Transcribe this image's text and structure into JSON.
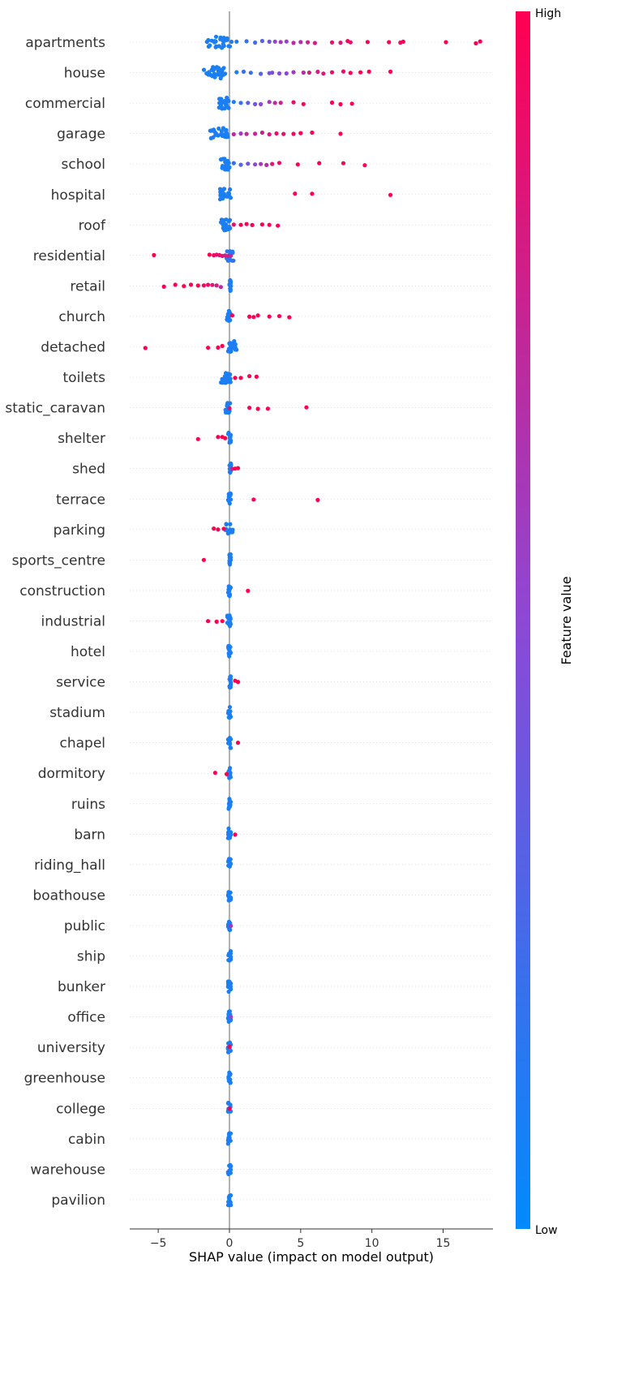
{
  "chart_data": {
    "type": "scatter",
    "subtype": "shap-beeswarm",
    "title": "",
    "xlabel": "SHAP value (impact on model output)",
    "xlim": [
      -7,
      18.5
    ],
    "xticks": [
      -5,
      0,
      5,
      10,
      15
    ],
    "xtick_labels": [
      "−5",
      "0",
      "5",
      "10",
      "15"
    ],
    "colorbar": {
      "title": "Feature value",
      "high_label": "High",
      "low_label": "Low",
      "low_color": "#008bfb",
      "high_color": "#ff0051"
    },
    "features": [
      {
        "name": "apartments",
        "cluster": [
          -1.8,
          0.2,
          30,
          0.1
        ],
        "points": [
          [
            0.5,
            0.1
          ],
          [
            1.2,
            0.2
          ],
          [
            1.8,
            0.25
          ],
          [
            2.3,
            0.3
          ],
          [
            2.8,
            0.4
          ],
          [
            3.2,
            0.5
          ],
          [
            3.6,
            0.6
          ],
          [
            4.0,
            0.55
          ],
          [
            4.5,
            0.7
          ],
          [
            5.0,
            0.65
          ],
          [
            5.5,
            0.75
          ],
          [
            6.0,
            0.8
          ],
          [
            7.2,
            0.9
          ],
          [
            7.8,
            0.85
          ],
          [
            8.3,
            0.95
          ],
          [
            8.5,
            0.9
          ],
          [
            9.7,
            1.0
          ],
          [
            11.2,
            1.0
          ],
          [
            12.0,
            0.95
          ],
          [
            12.2,
            1.0
          ],
          [
            15.2,
            1.0
          ],
          [
            17.3,
            1.0
          ],
          [
            17.6,
            1.0
          ]
        ]
      },
      {
        "name": "house",
        "cluster": [
          -1.8,
          -0.3,
          30,
          0.1
        ],
        "points": [
          [
            0.5,
            0.1
          ],
          [
            1.0,
            0.2
          ],
          [
            1.5,
            0.2
          ],
          [
            2.2,
            0.3
          ],
          [
            2.8,
            0.4
          ],
          [
            3.0,
            0.45
          ],
          [
            3.5,
            0.5
          ],
          [
            4.0,
            0.5
          ],
          [
            4.5,
            0.6
          ],
          [
            5.2,
            0.7
          ],
          [
            5.6,
            0.8
          ],
          [
            6.2,
            0.8
          ],
          [
            6.6,
            0.85
          ],
          [
            7.2,
            0.9
          ],
          [
            8.0,
            0.9
          ],
          [
            8.5,
            0.95
          ],
          [
            9.2,
            1.0
          ],
          [
            9.8,
            1.0
          ],
          [
            11.3,
            1.0
          ]
        ]
      },
      {
        "name": "commercial",
        "cluster": [
          -0.8,
          0.0,
          25,
          0.1
        ],
        "points": [
          [
            0.3,
            0.1
          ],
          [
            0.8,
            0.2
          ],
          [
            1.3,
            0.3
          ],
          [
            1.8,
            0.4
          ],
          [
            2.2,
            0.5
          ],
          [
            2.8,
            0.6
          ],
          [
            3.2,
            0.7
          ],
          [
            3.6,
            0.75
          ],
          [
            4.5,
            0.9
          ],
          [
            5.2,
            0.95
          ],
          [
            7.2,
            1.0
          ],
          [
            7.8,
            1.0
          ],
          [
            8.6,
            1.0
          ]
        ]
      },
      {
        "name": "garage",
        "cluster": [
          -1.4,
          -0.1,
          25,
          0.1
        ],
        "points": [
          [
            0.3,
            0.7
          ],
          [
            0.8,
            0.6
          ],
          [
            1.2,
            0.7
          ],
          [
            1.8,
            0.75
          ],
          [
            2.3,
            0.8
          ],
          [
            2.8,
            0.85
          ],
          [
            3.3,
            0.9
          ],
          [
            3.8,
            0.9
          ],
          [
            4.5,
            0.95
          ],
          [
            5.0,
            1.0
          ],
          [
            5.8,
            1.0
          ],
          [
            7.8,
            1.0
          ]
        ]
      },
      {
        "name": "school",
        "cluster": [
          -0.6,
          0.0,
          20,
          0.1
        ],
        "points": [
          [
            0.3,
            0.2
          ],
          [
            0.8,
            0.3
          ],
          [
            1.3,
            0.4
          ],
          [
            1.8,
            0.5
          ],
          [
            2.2,
            0.6
          ],
          [
            2.6,
            0.7
          ],
          [
            3.0,
            0.85
          ],
          [
            3.5,
            0.9
          ],
          [
            4.8,
            1.0
          ],
          [
            6.3,
            1.0
          ],
          [
            8.0,
            1.0
          ],
          [
            9.5,
            1.0
          ]
        ]
      },
      {
        "name": "hospital",
        "cluster": [
          -0.7,
          0.1,
          20,
          0.1
        ],
        "points": [
          [
            4.6,
            1.0
          ],
          [
            5.8,
            1.0
          ],
          [
            11.3,
            1.0
          ]
        ]
      },
      {
        "name": "roof",
        "cluster": [
          -0.6,
          0.1,
          20,
          0.1
        ],
        "points": [
          [
            0.3,
            0.9
          ],
          [
            0.8,
            1.0
          ],
          [
            1.2,
            1.0
          ],
          [
            1.6,
            1.0
          ],
          [
            2.3,
            1.0
          ],
          [
            2.8,
            1.0
          ],
          [
            3.4,
            1.0
          ]
        ]
      },
      {
        "name": "residential",
        "cluster": [
          -0.2,
          0.3,
          15,
          0.15
        ],
        "points": [
          [
            -5.3,
            1.0
          ],
          [
            -1.4,
            1.0
          ],
          [
            -1.1,
            0.95
          ],
          [
            -0.9,
            0.9
          ],
          [
            -0.7,
            0.9
          ],
          [
            -0.5,
            0.85
          ],
          [
            -0.3,
            0.8
          ],
          [
            -0.1,
            0.8
          ],
          [
            0.1,
            0.7
          ]
        ]
      },
      {
        "name": "retail",
        "cluster": [
          0.0,
          0.1,
          15,
          0.1
        ],
        "points": [
          [
            -4.6,
            1.0
          ],
          [
            -3.8,
            1.0
          ],
          [
            -3.2,
            1.0
          ],
          [
            -2.7,
            1.0
          ],
          [
            -2.2,
            1.0
          ],
          [
            -1.8,
            0.95
          ],
          [
            -1.5,
            0.9
          ],
          [
            -1.2,
            0.85
          ],
          [
            -0.9,
            0.8
          ],
          [
            -0.6,
            0.7
          ]
        ]
      },
      {
        "name": "church",
        "cluster": [
          -0.2,
          0.1,
          15,
          0.1
        ],
        "points": [
          [
            0.2,
            1.0
          ],
          [
            1.4,
            1.0
          ],
          [
            1.7,
            1.0
          ],
          [
            2.0,
            1.0
          ],
          [
            2.8,
            1.0
          ],
          [
            3.5,
            1.0
          ],
          [
            4.2,
            1.0
          ]
        ]
      },
      {
        "name": "detached",
        "cluster": [
          -0.1,
          0.5,
          20,
          0.1
        ],
        "points": [
          [
            -5.9,
            1.0
          ],
          [
            -1.5,
            1.0
          ],
          [
            -0.8,
            1.0
          ],
          [
            -0.5,
            1.0
          ]
        ]
      },
      {
        "name": "toilets",
        "cluster": [
          -0.6,
          0.1,
          20,
          0.1
        ],
        "points": [
          [
            0.4,
            1.0
          ],
          [
            0.8,
            1.0
          ],
          [
            1.4,
            1.0
          ],
          [
            1.9,
            1.0
          ]
        ]
      },
      {
        "name": "static_caravan",
        "cluster": [
          -0.3,
          0.1,
          15,
          0.1
        ],
        "points": [
          [
            0.0,
            0.9
          ],
          [
            1.4,
            1.0
          ],
          [
            2.0,
            1.0
          ],
          [
            2.7,
            1.0
          ],
          [
            5.4,
            1.0
          ]
        ]
      },
      {
        "name": "shelter",
        "cluster": [
          -0.1,
          0.1,
          15,
          0.1
        ],
        "points": [
          [
            -2.2,
            1.0
          ],
          [
            -0.8,
            1.0
          ],
          [
            -0.5,
            1.0
          ],
          [
            -0.3,
            1.0
          ]
        ]
      },
      {
        "name": "shed",
        "cluster": [
          0.0,
          0.2,
          12,
          0.1
        ],
        "points": [
          [
            0.2,
            0.8
          ],
          [
            0.4,
            1.0
          ],
          [
            0.6,
            1.0
          ]
        ]
      },
      {
        "name": "terrace",
        "cluster": [
          -0.1,
          0.1,
          12,
          0.1
        ],
        "points": [
          [
            1.7,
            1.0
          ],
          [
            6.2,
            1.0
          ]
        ]
      },
      {
        "name": "parking",
        "cluster": [
          -0.3,
          0.3,
          12,
          0.1
        ],
        "points": [
          [
            -1.1,
            1.0
          ],
          [
            -0.8,
            1.0
          ],
          [
            -0.4,
            1.0
          ]
        ]
      },
      {
        "name": "sports_centre",
        "cluster": [
          0.0,
          0.1,
          12,
          0.1
        ],
        "points": [
          [
            -1.8,
            1.0
          ]
        ]
      },
      {
        "name": "construction",
        "cluster": [
          -0.1,
          0.1,
          12,
          0.1
        ],
        "points": [
          [
            1.3,
            1.0
          ]
        ]
      },
      {
        "name": "industrial",
        "cluster": [
          -0.2,
          0.1,
          12,
          0.1
        ],
        "points": [
          [
            -1.5,
            1.0
          ],
          [
            -0.9,
            1.0
          ],
          [
            -0.5,
            1.0
          ]
        ]
      },
      {
        "name": "hotel",
        "cluster": [
          -0.1,
          0.1,
          12,
          0.1
        ],
        "points": []
      },
      {
        "name": "service",
        "cluster": [
          0.0,
          0.1,
          12,
          0.1
        ],
        "points": [
          [
            0.4,
            1.0
          ],
          [
            0.6,
            1.0
          ]
        ]
      },
      {
        "name": "stadium",
        "cluster": [
          -0.1,
          0.1,
          12,
          0.1
        ],
        "points": []
      },
      {
        "name": "chapel",
        "cluster": [
          -0.1,
          0.1,
          12,
          0.1
        ],
        "points": [
          [
            0.6,
            1.0
          ]
        ]
      },
      {
        "name": "dormitory",
        "cluster": [
          -0.1,
          0.1,
          12,
          0.1
        ],
        "points": [
          [
            -1.0,
            1.0
          ],
          [
            -0.2,
            1.0
          ]
        ]
      },
      {
        "name": "ruins",
        "cluster": [
          -0.1,
          0.1,
          12,
          0.1
        ],
        "points": []
      },
      {
        "name": "barn",
        "cluster": [
          -0.1,
          0.1,
          12,
          0.1
        ],
        "points": [
          [
            0.4,
            1.0
          ]
        ]
      },
      {
        "name": "riding_hall",
        "cluster": [
          -0.1,
          0.1,
          12,
          0.1
        ],
        "points": []
      },
      {
        "name": "boathouse",
        "cluster": [
          -0.1,
          0.1,
          12,
          0.1
        ],
        "points": []
      },
      {
        "name": "public",
        "cluster": [
          -0.1,
          0.1,
          12,
          0.1
        ],
        "points": [
          [
            0.1,
            0.6
          ]
        ]
      },
      {
        "name": "ship",
        "cluster": [
          -0.1,
          0.1,
          12,
          0.1
        ],
        "points": []
      },
      {
        "name": "bunker",
        "cluster": [
          -0.1,
          0.1,
          12,
          0.1
        ],
        "points": []
      },
      {
        "name": "office",
        "cluster": [
          -0.1,
          0.1,
          12,
          0.1
        ],
        "points": [
          [
            0.1,
            0.5
          ]
        ]
      },
      {
        "name": "university",
        "cluster": [
          -0.1,
          0.1,
          12,
          0.1
        ],
        "points": [
          [
            0.0,
            1.0
          ]
        ]
      },
      {
        "name": "greenhouse",
        "cluster": [
          -0.1,
          0.1,
          12,
          0.1
        ],
        "points": []
      },
      {
        "name": "college",
        "cluster": [
          -0.1,
          0.1,
          12,
          0.1
        ],
        "points": [
          [
            0.0,
            1.0
          ]
        ]
      },
      {
        "name": "cabin",
        "cluster": [
          -0.1,
          0.1,
          12,
          0.1
        ],
        "points": []
      },
      {
        "name": "warehouse",
        "cluster": [
          -0.1,
          0.1,
          12,
          0.1
        ],
        "points": []
      },
      {
        "name": "pavilion",
        "cluster": [
          -0.1,
          0.1,
          12,
          0.1
        ],
        "points": []
      }
    ]
  }
}
